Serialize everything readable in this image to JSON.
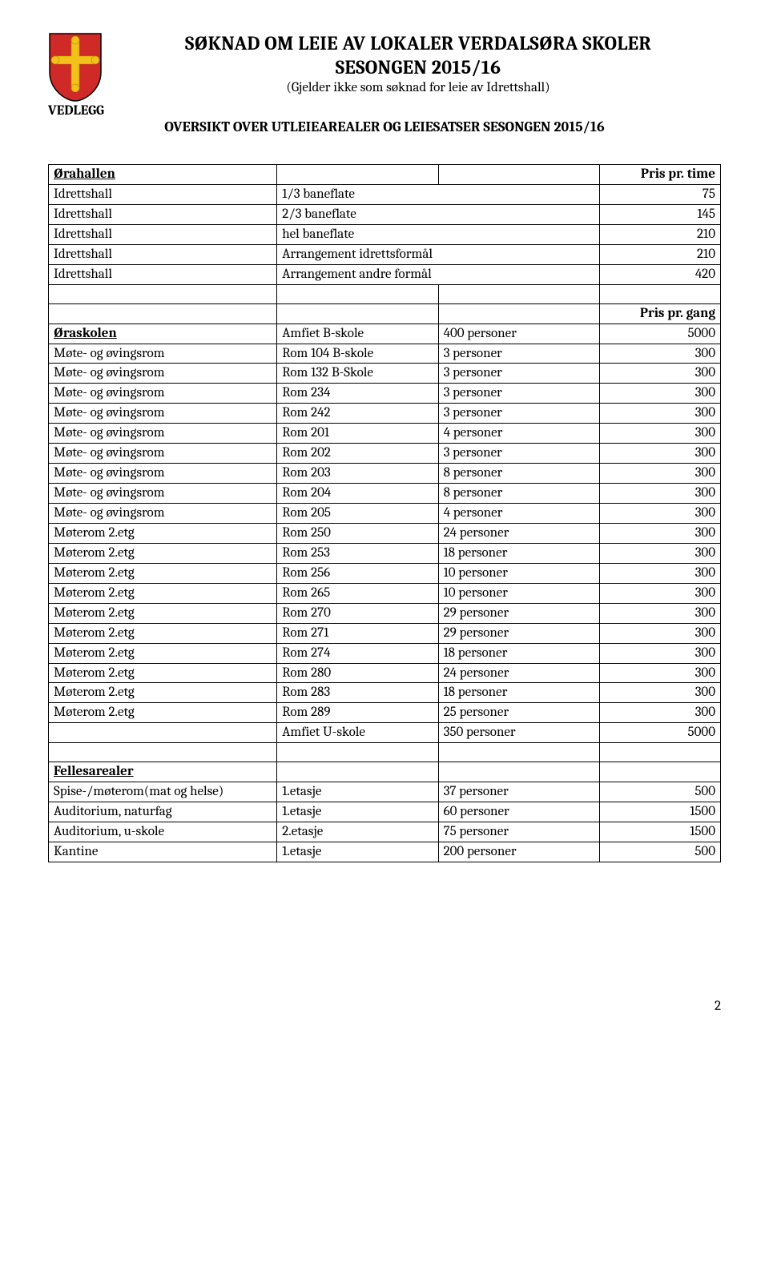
{
  "header": {
    "title1": "SØKNAD OM LEIE AV LOKALER VERDALSØRA SKOLER",
    "title2": "SESONGEN 2015/16",
    "subtitle": "(Gjelder ikke som søknad for leie av Idrettshall)",
    "vedlegg": "VEDLEGG",
    "overview": "OVERSIKT OVER UTLEIEAREALER OG LEIESATSER SESONGEN 2015/16"
  },
  "shield": {
    "bg": "#cf2a27",
    "cross": "#f2c11a",
    "outline": "#000000"
  },
  "table": {
    "section1": {
      "header": {
        "name": "Ørahallen",
        "price_label": "Pris pr. time"
      },
      "rows": [
        {
          "a": "Idrettshall",
          "b": "1/3 baneflate",
          "c": "",
          "d": "75"
        },
        {
          "a": "Idrettshall",
          "b": "2/3 baneflate",
          "c": "",
          "d": "145"
        },
        {
          "a": "Idrettshall",
          "b": "hel baneflate",
          "c": "",
          "d": "210"
        },
        {
          "a": "Idrettshall",
          "b": "Arrangement idrettsformål",
          "c": "",
          "d": "210"
        },
        {
          "a": "Idrettshall",
          "b": "Arrangement andre formål",
          "c": "",
          "d": "420"
        }
      ]
    },
    "section2": {
      "price_label": "Pris pr. gang",
      "header_name": "Øraskolen",
      "header_row": {
        "b": "Amfiet B-skole",
        "c": "400 personer",
        "d": "5000"
      },
      "rows": [
        {
          "a": "Møte- og øvingsrom",
          "b": "Rom 104 B-skole",
          "c": "3 personer",
          "d": "300"
        },
        {
          "a": "Møte- og øvingsrom",
          "b": "Rom 132 B-Skole",
          "c": "3 personer",
          "d": "300"
        },
        {
          "a": "Møte- og øvingsrom",
          "b": "Rom 234",
          "c": "3 personer",
          "d": "300"
        },
        {
          "a": "Møte- og øvingsrom",
          "b": "Rom 242",
          "c": "3 personer",
          "d": "300"
        },
        {
          "a": "Møte- og øvingsrom",
          "b": "Rom 201",
          "c": "4 personer",
          "d": "300"
        },
        {
          "a": "Møte- og øvingsrom",
          "b": "Rom 202",
          "c": "3 personer",
          "d": "300"
        },
        {
          "a": "Møte- og øvingsrom",
          "b": "Rom 203",
          "c": "8 personer",
          "d": "300"
        },
        {
          "a": "Møte- og øvingsrom",
          "b": "Rom 204",
          "c": "8 personer",
          "d": "300"
        },
        {
          "a": "Møte- og øvingsrom",
          "b": "Rom 205",
          "c": "4 personer",
          "d": "300"
        },
        {
          "a": "Møterom 2.etg",
          "b": "Rom 250",
          "c": "24 personer",
          "d": "300"
        },
        {
          "a": "Møterom 2.etg",
          "b": "Rom 253",
          "c": "18 personer",
          "d": "300"
        },
        {
          "a": "Møterom 2.etg",
          "b": "Rom 256",
          "c": "10 personer",
          "d": "300"
        },
        {
          "a": "Møterom 2.etg",
          "b": "Rom 265",
          "c": "10 personer",
          "d": "300"
        },
        {
          "a": "Møterom 2.etg",
          "b": "Rom 270",
          "c": "29 personer",
          "d": "300"
        },
        {
          "a": "Møterom 2.etg",
          "b": "Rom 271",
          "c": "29 personer",
          "d": "300"
        },
        {
          "a": "Møterom 2.etg",
          "b": "Rom 274",
          "c": "18 personer",
          "d": "300"
        },
        {
          "a": "Møterom 2.etg",
          "b": "Rom 280",
          "c": "24 personer",
          "d": "300"
        },
        {
          "a": "Møterom 2.etg",
          "b": "Rom 283",
          "c": "18 personer",
          "d": "300"
        },
        {
          "a": "Møterom 2.etg",
          "b": "Rom 289",
          "c": "25 personer",
          "d": "300"
        },
        {
          "a": "",
          "b": "Amfiet U-skole",
          "c": "350 personer",
          "d": "5000"
        }
      ]
    },
    "section3": {
      "header_name": "Fellesarealer",
      "rows": [
        {
          "a": "Spise-/møterom(mat og helse)",
          "b": "1.etasje",
          "c": "37 personer",
          "d": "500"
        },
        {
          "a": "Auditorium, naturfag",
          "b": "1.etasje",
          "c": "60 personer",
          "d": "1500"
        },
        {
          "a": "Auditorium, u-skole",
          "b": "2.etasje",
          "c": "75 personer",
          "d": "1500"
        },
        {
          "a": "Kantine",
          "b": "1.etasje",
          "c": "200 personer",
          "d": "500"
        }
      ]
    }
  },
  "pagenum": "2"
}
